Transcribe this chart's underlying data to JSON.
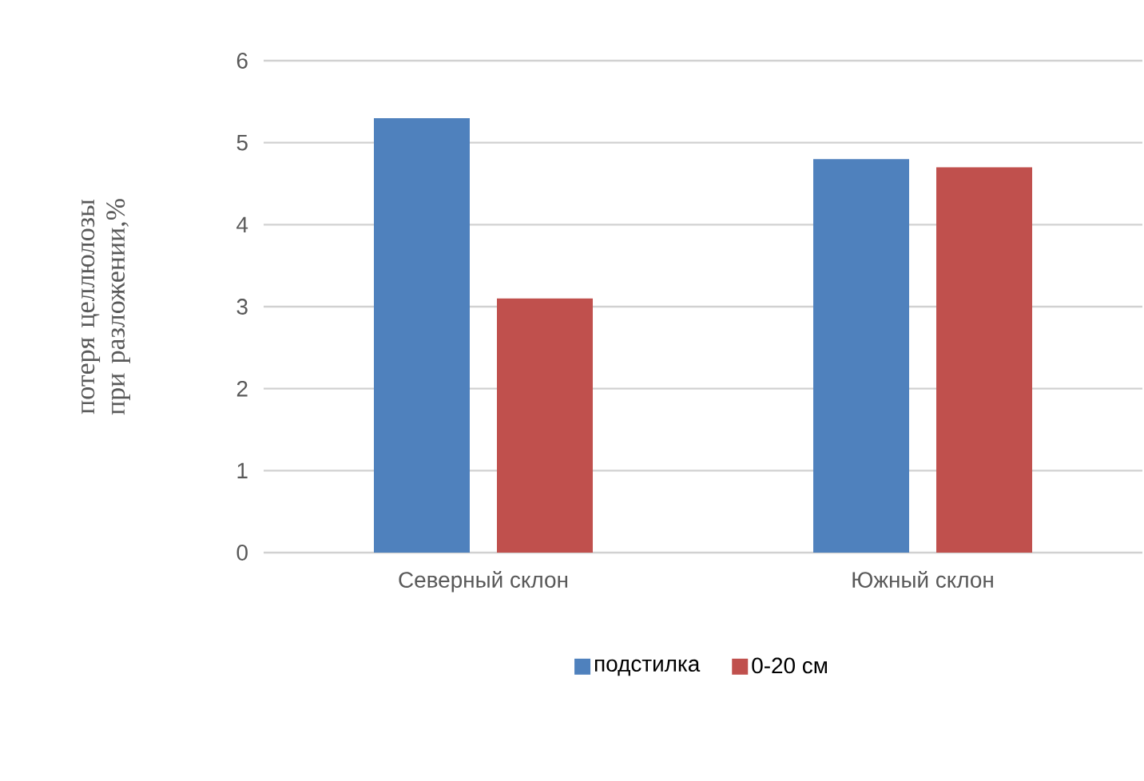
{
  "chart_data": {
    "type": "bar",
    "ylabel": "потеря целлюлозы при разложении,%",
    "categories": [
      "Северный склон",
      "Южный склон"
    ],
    "series": [
      {
        "name": "подстилка",
        "color": "#4f81bd",
        "values": [
          5.3,
          4.8
        ]
      },
      {
        "name": "0-20 см",
        "color": "#c0504d",
        "values": [
          3.1,
          4.7
        ]
      }
    ],
    "ylim": [
      0,
      6
    ],
    "yticks": [
      0,
      1,
      2,
      3,
      4,
      5,
      6
    ],
    "grid": "y",
    "legend": "bottom"
  }
}
